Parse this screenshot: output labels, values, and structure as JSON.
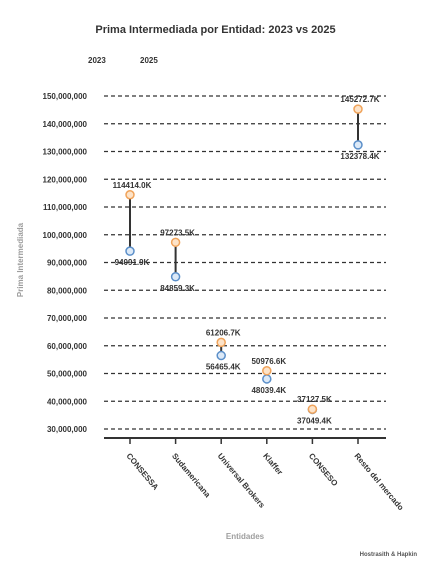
{
  "chart_data": {
    "type": "dumbbell",
    "title": "Prima Intermediada por Entidad: 2023 vs 2025",
    "xlabel": "Entidades",
    "ylabel": "Prima Intermediada",
    "ylim": [
      30000000,
      150000000
    ],
    "yticks": [
      "150,000,000",
      "140,000,000",
      "130,000,000",
      "120,000,000",
      "110,000,000",
      "100,000,000",
      "90,000,000",
      "80,000,000",
      "70,000,000",
      "60,000,000",
      "50,000,000",
      "40,000,000",
      "30,000,000"
    ],
    "ytick_values": [
      150000000,
      140000000,
      130000000,
      120000000,
      110000000,
      100000000,
      90000000,
      80000000,
      70000000,
      60000000,
      50000000,
      40000000,
      30000000
    ],
    "grid": true,
    "legend_position": "top-left",
    "categories": [
      "CONSESSA",
      "Sudamericana",
      "Universal Brokers",
      "Klaffer",
      "CONSESO",
      "Resto del mercado"
    ],
    "series": [
      {
        "name": "2023",
        "values": [
          94091900,
          84859300,
          56465400,
          48039400,
          37049400,
          132378400
        ],
        "labels": [
          "94091.9K",
          "84859.3K",
          "56465.4K",
          "48039.4K",
          "37049.4K",
          "132378.4K"
        ],
        "color": "#5b8fc9"
      },
      {
        "name": "2025",
        "values": [
          114414000,
          97273500,
          61206700,
          50976600,
          37127500,
          145272700
        ],
        "labels": [
          "114414.0K",
          "97273.5K",
          "61206.7K",
          "50976.6K",
          "37127.5K",
          "145272.7K"
        ],
        "color": "#f0a35a"
      }
    ],
    "connector_color": "#333333"
  },
  "credit": "Hostrasith & Hapkin"
}
